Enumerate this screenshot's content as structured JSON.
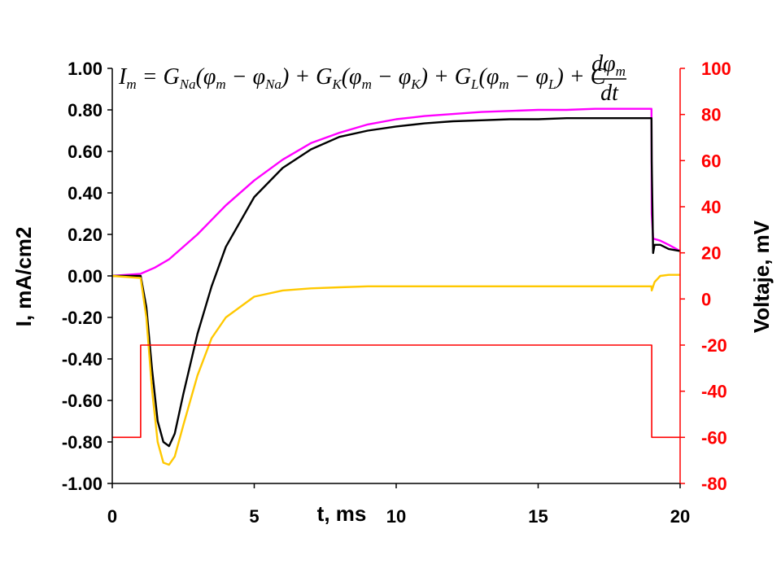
{
  "chart_data": {
    "type": "line",
    "title": "",
    "equation": {
      "lhs": "I",
      "lhs_sub": "m",
      "equals": " = ",
      "term1": "G",
      "term1_sub": "Na",
      "term1_body": "(φ",
      "term1_body_sub": "m",
      "term1_minus": " − φ",
      "term1_minus_sub": "Na",
      "term1_close": ") + ",
      "term2": "G",
      "term2_sub": "K",
      "term2_body": "(φ",
      "term2_body_sub": "m",
      "term2_minus": " − φ",
      "term2_minus_sub": "K",
      "term2_close": ") + ",
      "term3": "G",
      "term3_sub": "L",
      "term3_body": "(φ",
      "term3_body_sub": "m",
      "term3_minus": " − φ",
      "term3_minus_sub": "L",
      "term3_close": ") + ",
      "term4": "C",
      "frac_num": "dφ",
      "frac_num_sub": "m",
      "frac_den": "dt"
    },
    "xlabel": "t, ms",
    "ylabel_left": "I, mA/cm2",
    "ylabel_right": "Voltaje, mV",
    "xlim": [
      0,
      20
    ],
    "ylim_left": [
      -1.0,
      1.0
    ],
    "ylim_right": [
      -80,
      100
    ],
    "x_ticks": [
      "0",
      "5",
      "10",
      "15",
      "20"
    ],
    "x_tick_values": [
      0,
      5,
      10,
      15,
      20
    ],
    "y_left_ticks": [
      "1.00",
      "0.80",
      "0.60",
      "0.40",
      "0.20",
      "0.00",
      "-0.20",
      "-0.40",
      "-0.60",
      "-0.80",
      "-1.00"
    ],
    "y_left_tick_values": [
      1.0,
      0.8,
      0.6,
      0.4,
      0.2,
      0.0,
      -0.2,
      -0.4,
      -0.6,
      -0.8,
      -1.0
    ],
    "y_right_ticks": [
      "100",
      "80",
      "60",
      "40",
      "20",
      "0",
      "-20",
      "-40",
      "-60",
      "-80"
    ],
    "y_right_tick_values": [
      100,
      80,
      60,
      40,
      20,
      0,
      -20,
      -40,
      -60,
      -80
    ],
    "grid": false,
    "colors": {
      "magenta": "#ff00ff",
      "black": "#000000",
      "yellow": "#ffc800",
      "red": "#ff0000"
    },
    "series": [
      {
        "color": "magenta",
        "axis": "left",
        "x": [
          0,
          1.0,
          1.5,
          2,
          3,
          4,
          5,
          6,
          7,
          8,
          9,
          10,
          11,
          12,
          13,
          14,
          15,
          16,
          17,
          18,
          18.99,
          19.0,
          19.05,
          19.3,
          19.6,
          20
        ],
        "y": [
          0.0,
          0.01,
          0.04,
          0.08,
          0.2,
          0.34,
          0.46,
          0.56,
          0.64,
          0.69,
          0.73,
          0.755,
          0.77,
          0.78,
          0.79,
          0.795,
          0.8,
          0.8,
          0.805,
          0.805,
          0.805,
          0.3,
          0.18,
          0.17,
          0.15,
          0.12
        ]
      },
      {
        "color": "black",
        "axis": "left",
        "x": [
          0,
          1.0,
          1.2,
          1.4,
          1.6,
          1.8,
          2.0,
          2.2,
          2.5,
          3,
          3.5,
          4,
          5,
          6,
          7,
          8,
          9,
          10,
          11,
          12,
          13,
          14,
          15,
          16,
          17,
          18,
          18.99,
          19.0,
          19.05,
          19.1,
          19.3,
          19.6,
          20
        ],
        "y": [
          0.0,
          0.0,
          -0.15,
          -0.45,
          -0.7,
          -0.8,
          -0.82,
          -0.76,
          -0.57,
          -0.28,
          -0.05,
          0.14,
          0.38,
          0.52,
          0.61,
          0.67,
          0.7,
          0.72,
          0.735,
          0.745,
          0.75,
          0.755,
          0.755,
          0.76,
          0.76,
          0.76,
          0.76,
          0.55,
          0.11,
          0.15,
          0.15,
          0.13,
          0.12
        ]
      },
      {
        "color": "yellow",
        "axis": "left",
        "x": [
          0,
          1.0,
          1.2,
          1.4,
          1.6,
          1.8,
          2.0,
          2.2,
          2.5,
          3,
          3.5,
          4,
          5,
          6,
          7,
          8,
          9,
          10,
          11,
          12,
          13,
          14,
          15,
          16,
          17,
          18,
          18.99,
          19.0,
          19.1,
          19.3,
          19.6,
          20
        ],
        "y": [
          0.0,
          -0.01,
          -0.2,
          -0.55,
          -0.8,
          -0.9,
          -0.91,
          -0.87,
          -0.72,
          -0.48,
          -0.3,
          -0.2,
          -0.1,
          -0.07,
          -0.06,
          -0.055,
          -0.05,
          -0.05,
          -0.05,
          -0.05,
          -0.05,
          -0.05,
          -0.05,
          -0.05,
          -0.05,
          -0.05,
          -0.05,
          -0.07,
          -0.03,
          0.0,
          0.005,
          0.005
        ]
      },
      {
        "color": "red",
        "axis": "right",
        "x": [
          0,
          1.0,
          1.0,
          19.0,
          19.0,
          20
        ],
        "y": [
          -60,
          -60,
          -20,
          -20,
          -60,
          -60
        ]
      }
    ]
  }
}
